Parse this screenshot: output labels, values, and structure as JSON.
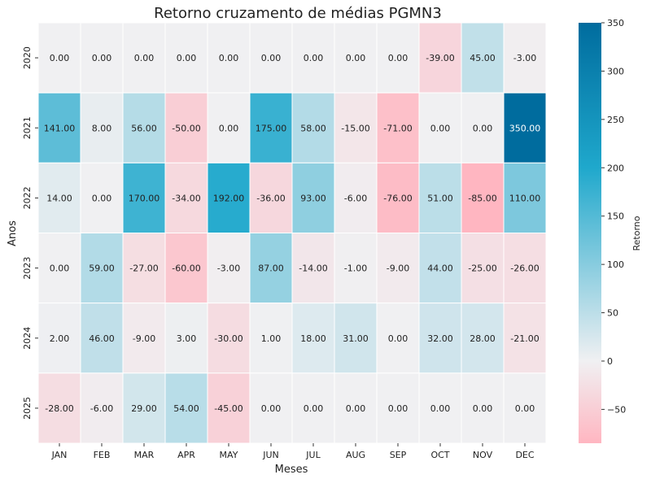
{
  "chart_data": {
    "type": "heatmap",
    "title": "Retorno cruzamento de médias PGMN3",
    "xlabel": "Meses",
    "ylabel": "Anos",
    "colorbar_label": "Retorno",
    "x_categories": [
      "JAN",
      "FEB",
      "MAR",
      "APR",
      "MAY",
      "JUN",
      "JUL",
      "AUG",
      "SEP",
      "OCT",
      "NOV",
      "DEC"
    ],
    "y_categories": [
      "2020",
      "2021",
      "2022",
      "2023",
      "2024",
      "2025"
    ],
    "values": [
      [
        0,
        0,
        0,
        0,
        0,
        0,
        0,
        0,
        0,
        -39,
        45,
        -3
      ],
      [
        141,
        8,
        56,
        -50,
        0,
        175,
        58,
        -15,
        -71,
        0,
        0,
        350
      ],
      [
        14,
        0,
        170,
        -34,
        192,
        -36,
        93,
        -6,
        -76,
        51,
        -85,
        110
      ],
      [
        0,
        59,
        -27,
        -60,
        -3,
        87,
        -14,
        -1,
        -9,
        44,
        -25,
        -26
      ],
      [
        2,
        46,
        -9,
        3,
        -30,
        1,
        18,
        31,
        0,
        32,
        28,
        -21
      ],
      [
        -28,
        -6,
        29,
        54,
        -45,
        0,
        0,
        0,
        0,
        0,
        0,
        0
      ]
    ],
    "value_format": "0.00",
    "color_scale": {
      "min": -85,
      "max": 350,
      "center": 0,
      "negative_color": "#ffb6c1",
      "center_color": "#f0f0f2",
      "mid_positive_value": 200,
      "mid_positive_color": "#1fa8cc",
      "max_color": "#006c9e"
    },
    "colorbar_ticks": [
      "350",
      "300",
      "250",
      "200",
      "150",
      "100",
      "50",
      "0",
      "−50"
    ],
    "colorbar_tick_values": [
      350,
      300,
      250,
      200,
      150,
      100,
      50,
      0,
      -50
    ]
  }
}
